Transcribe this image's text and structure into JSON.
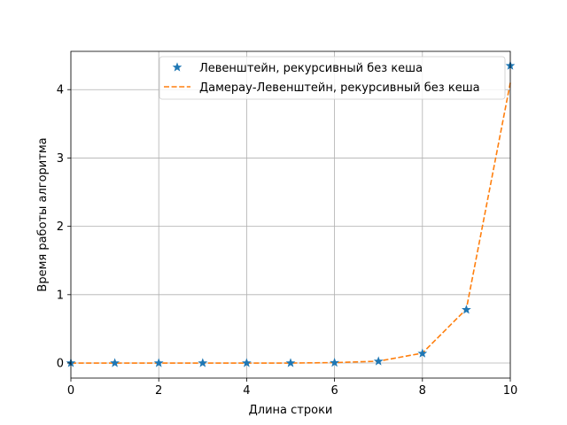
{
  "chart_data": {
    "type": "line",
    "xlabel": "Длина строки",
    "ylabel": "Время работы алгоритма",
    "xlim": [
      0,
      10
    ],
    "ylim": [
      -0.22,
      4.56
    ],
    "xticks": [
      0,
      2,
      4,
      6,
      8,
      10
    ],
    "yticks": [
      0,
      1,
      2,
      3,
      4
    ],
    "grid": true,
    "legend_position": "top-right",
    "x": [
      0,
      1,
      2,
      3,
      4,
      5,
      6,
      7,
      8,
      9,
      10
    ],
    "series": [
      {
        "name": "Левенштейн, рекурсивный без кеша",
        "style": "markers",
        "marker": "star",
        "color": "#1f77b4",
        "values": [
          0.0,
          0.0,
          0.0,
          0.0,
          0.0,
          0.0,
          0.005,
          0.025,
          0.14,
          0.78,
          4.35
        ]
      },
      {
        "name": "Дамерау-Левенштейн, рекурсивный без кеша",
        "style": "dashed",
        "color": "#ff7f0e",
        "values": [
          0.0,
          0.0,
          0.0,
          0.0,
          0.0,
          0.0,
          0.006,
          0.027,
          0.145,
          0.79,
          4.1
        ]
      }
    ]
  }
}
